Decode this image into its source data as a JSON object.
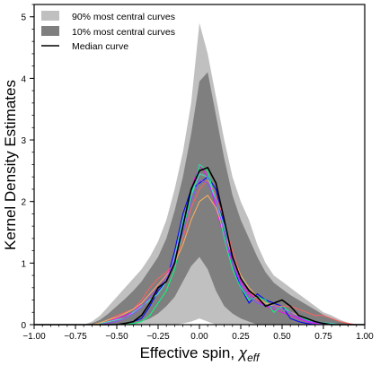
{
  "chart_data": {
    "type": "area",
    "xlabel": "Effective spin, ",
    "xlabel_symbol": "χ",
    "xlabel_sub": "eff",
    "ylabel": "Kernel Density Estimates",
    "xlim": [
      -1.0,
      1.0
    ],
    "ylim": [
      0,
      5.2
    ],
    "xticks": [
      "−1.00",
      "−0.75",
      "−0.50",
      "−0.25",
      "0.00",
      "0.25",
      "0.50",
      "0.75",
      "1.00"
    ],
    "xtick_values": [
      -1.0,
      -0.75,
      -0.5,
      -0.25,
      0.0,
      0.25,
      0.5,
      0.75,
      1.0
    ],
    "yticks": [
      "0",
      "1",
      "2",
      "3",
      "4",
      "5"
    ],
    "ytick_values": [
      0,
      1,
      2,
      3,
      4,
      5
    ],
    "grid": false,
    "legend_position": "top-left",
    "legend": [
      {
        "label": "90% most central curves",
        "color": "#c0c0c0",
        "kind": "band"
      },
      {
        "label": "10% most central curves",
        "color": "#7f7f7f",
        "kind": "band"
      },
      {
        "label": "Median curve",
        "color": "#000000",
        "kind": "line"
      }
    ],
    "x": [
      -1.0,
      -0.7,
      -0.65,
      -0.6,
      -0.55,
      -0.5,
      -0.45,
      -0.4,
      -0.35,
      -0.3,
      -0.25,
      -0.2,
      -0.15,
      -0.1,
      -0.05,
      0.0,
      0.05,
      0.1,
      0.15,
      0.2,
      0.25,
      0.3,
      0.35,
      0.4,
      0.45,
      0.5,
      0.55,
      0.6,
      0.65,
      0.7,
      0.75,
      0.8,
      0.85,
      0.9,
      0.95,
      1.0
    ],
    "band_90_upper": [
      0,
      0,
      0.05,
      0.15,
      0.3,
      0.45,
      0.6,
      0.75,
      0.9,
      1.1,
      1.35,
      1.7,
      2.2,
      2.8,
      3.6,
      4.9,
      4.4,
      3.7,
      3.0,
      2.4,
      2.0,
      1.7,
      1.3,
      1.0,
      0.8,
      0.7,
      0.6,
      0.5,
      0.4,
      0.3,
      0.2,
      0.15,
      0.08,
      0.03,
      0,
      0
    ],
    "band_90_lower": [
      0,
      0,
      0,
      0,
      0,
      0,
      0,
      0,
      0,
      0,
      0,
      0,
      0,
      0.02,
      0.05,
      0.1,
      0.05,
      0,
      0,
      0,
      0,
      0,
      0,
      0,
      0,
      0,
      0,
      0,
      0,
      0,
      0,
      0,
      0,
      0,
      0,
      0
    ],
    "band_10_upper": [
      0,
      0,
      0.02,
      0.08,
      0.18,
      0.3,
      0.42,
      0.55,
      0.7,
      0.9,
      1.1,
      1.4,
      1.85,
      2.4,
      3.1,
      3.95,
      4.1,
      3.4,
      2.7,
      2.1,
      1.7,
      1.4,
      1.1,
      0.85,
      0.68,
      0.58,
      0.48,
      0.4,
      0.32,
      0.24,
      0.16,
      0.1,
      0.05,
      0.02,
      0,
      0
    ],
    "band_10_lower": [
      0,
      0,
      0,
      0,
      0,
      0,
      0,
      0,
      0.05,
      0.1,
      0.18,
      0.3,
      0.45,
      0.7,
      0.95,
      1.1,
      0.9,
      0.55,
      0.3,
      0.18,
      0.1,
      0.05,
      0,
      0,
      0,
      0,
      0,
      0,
      0,
      0,
      0,
      0,
      0,
      0,
      0,
      0
    ],
    "median": [
      0,
      0,
      0,
      0,
      0,
      0,
      0.02,
      0.05,
      0.15,
      0.35,
      0.6,
      0.7,
      1.0,
      1.6,
      2.2,
      2.5,
      2.55,
      2.3,
      1.7,
      1.1,
      0.75,
      0.55,
      0.45,
      0.3,
      0.35,
      0.4,
      0.3,
      0.15,
      0.1,
      0.05,
      0.02,
      0,
      0,
      0,
      0,
      0
    ],
    "curves": [
      {
        "color": "#ff00ff",
        "values": [
          0,
          0,
          0,
          0.02,
          0.05,
          0.1,
          0.15,
          0.2,
          0.35,
          0.5,
          0.65,
          0.8,
          1.1,
          1.6,
          2.2,
          2.6,
          2.4,
          1.9,
          1.4,
          1.0,
          0.7,
          0.5,
          0.4,
          0.3,
          0.25,
          0.2,
          0.15,
          0.1,
          0.05,
          0.02,
          0,
          0,
          0,
          0,
          0,
          0
        ]
      },
      {
        "color": "#0000ff",
        "values": [
          0,
          0,
          0,
          0,
          0,
          0,
          0.02,
          0.05,
          0.1,
          0.3,
          0.55,
          0.7,
          1.2,
          1.8,
          2.2,
          2.3,
          2.4,
          2.2,
          1.6,
          1.0,
          0.6,
          0.35,
          0.5,
          0.4,
          0.35,
          0.3,
          0.1,
          0.05,
          0.02,
          0,
          0,
          0,
          0,
          0,
          0,
          0
        ]
      },
      {
        "color": "#00ff80",
        "values": [
          0,
          0,
          0,
          0,
          0,
          0,
          0,
          0.02,
          0.05,
          0.15,
          0.35,
          0.55,
          0.9,
          1.5,
          2.1,
          2.6,
          2.5,
          2.0,
          1.4,
          0.9,
          0.6,
          0.4,
          0.45,
          0.4,
          0.2,
          0.3,
          0.2,
          0.15,
          0.08,
          0.05,
          0.02,
          0,
          0,
          0,
          0,
          0
        ]
      },
      {
        "color": "#ff6060",
        "values": [
          0,
          0,
          0,
          0.02,
          0.08,
          0.15,
          0.2,
          0.25,
          0.4,
          0.6,
          0.75,
          0.85,
          1.0,
          1.4,
          1.9,
          2.2,
          2.35,
          2.1,
          1.7,
          1.2,
          0.8,
          0.55,
          0.4,
          0.35,
          0.3,
          0.3,
          0.3,
          0.25,
          0.2,
          0.15,
          0.15,
          0.1,
          0.05,
          0.02,
          0,
          0
        ]
      },
      {
        "color": "#40e0d0",
        "values": [
          0,
          0,
          0,
          0.02,
          0.05,
          0.08,
          0.1,
          0.2,
          0.3,
          0.4,
          0.5,
          0.7,
          1.1,
          1.7,
          2.1,
          2.45,
          2.4,
          2.0,
          1.6,
          1.1,
          0.8,
          0.55,
          0.45,
          0.35,
          0.3,
          0.25,
          0.2,
          0.15,
          0.1,
          0.05,
          0.03,
          0.02,
          0,
          0,
          0,
          0
        ]
      },
      {
        "color": "#ffb060",
        "values": [
          0,
          0,
          0,
          0.03,
          0.08,
          0.12,
          0.18,
          0.25,
          0.35,
          0.5,
          0.65,
          0.8,
          1.0,
          1.3,
          1.7,
          2.0,
          2.1,
          1.9,
          1.5,
          1.1,
          0.8,
          0.6,
          0.45,
          0.35,
          0.3,
          0.25,
          0.2,
          0.15,
          0.1,
          0.05,
          0.02,
          0,
          0,
          0,
          0,
          0
        ]
      },
      {
        "color": "#9050ff",
        "values": [
          0,
          0,
          0,
          0,
          0.02,
          0.05,
          0.1,
          0.18,
          0.28,
          0.45,
          0.6,
          0.75,
          1.05,
          1.5,
          2.0,
          2.35,
          2.3,
          2.0,
          1.5,
          1.0,
          0.65,
          0.45,
          0.35,
          0.3,
          0.3,
          0.25,
          0.2,
          0.12,
          0.06,
          0.03,
          0,
          0,
          0,
          0,
          0,
          0
        ]
      }
    ]
  }
}
